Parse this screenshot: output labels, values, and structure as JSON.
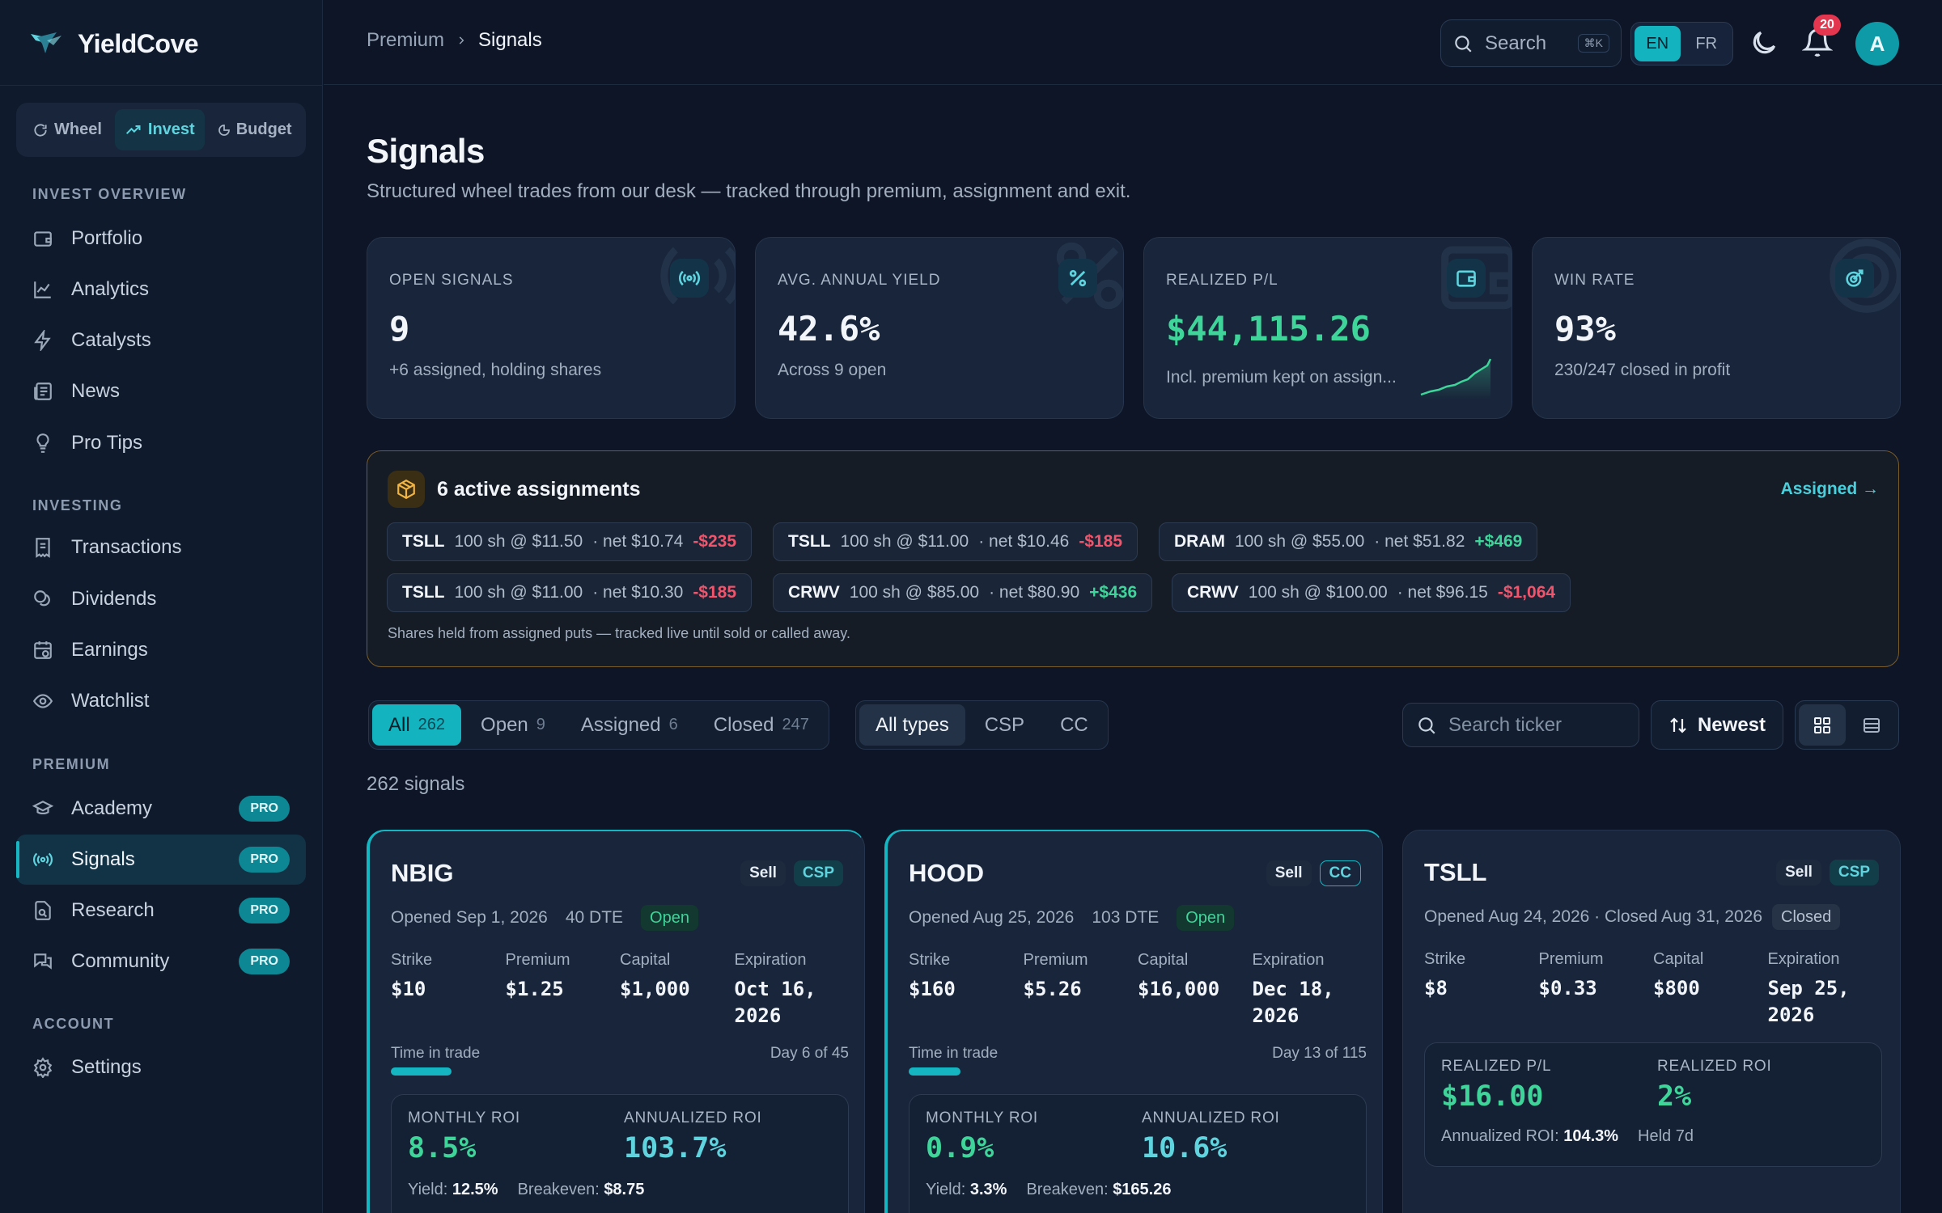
{
  "brand": {
    "name": "YieldCove"
  },
  "modes": [
    {
      "label": "Wheel",
      "active": false
    },
    {
      "label": "Invest",
      "active": true
    },
    {
      "label": "Budget",
      "active": false
    }
  ],
  "sidebar": {
    "sections": [
      {
        "title": "INVEST OVERVIEW",
        "items": [
          "Portfolio",
          "Analytics",
          "Catalysts",
          "News",
          "Pro Tips"
        ]
      },
      {
        "title": "INVESTING",
        "items": [
          "Transactions",
          "Dividends",
          "Earnings",
          "Watchlist"
        ]
      },
      {
        "title": "PREMIUM",
        "items": [
          "Academy",
          "Signals",
          "Research",
          "Community"
        ]
      },
      {
        "title": "ACCOUNT",
        "items": [
          "Settings"
        ]
      }
    ],
    "pro_badge": "PRO",
    "active_item": "Signals"
  },
  "header": {
    "breadcrumb": [
      "Premium",
      "Signals"
    ],
    "search_label": "Search",
    "search_kbd": "⌘K",
    "langs": [
      "EN",
      "FR"
    ],
    "active_lang": "EN",
    "notif_count": "20",
    "avatar_initial": "A"
  },
  "page": {
    "title": "Signals",
    "subtitle": "Structured wheel trades from our desk — tracked through premium, assignment and exit."
  },
  "stats": [
    {
      "label": "OPEN SIGNALS",
      "value": "9",
      "sub": "+6 assigned, holding shares",
      "icon": "broadcast-icon"
    },
    {
      "label": "AVG. ANNUAL YIELD",
      "value": "42.6%",
      "sub": "Across 9 open",
      "icon": "percent-icon"
    },
    {
      "label": "REALIZED P/L",
      "value": "$44,115.26",
      "sub": "Incl. premium kept on assign...",
      "icon": "wallet-icon"
    },
    {
      "label": "WIN RATE",
      "value": "93%",
      "sub": "230/247 closed in profit",
      "icon": "target-icon"
    }
  ],
  "assignments": {
    "title": "6 active assignments",
    "link": "Assigned →",
    "note": "Shares held from assigned puts — tracked live until sold or called away.",
    "chips": [
      {
        "ticker": "TSLL",
        "detail": "100 sh @ $11.50",
        "net": "· net $10.74",
        "pl": "-$235",
        "positive": false
      },
      {
        "ticker": "TSLL",
        "detail": "100 sh @ $11.00",
        "net": "· net $10.46",
        "pl": "-$185",
        "positive": false
      },
      {
        "ticker": "DRAM",
        "detail": "100 sh @ $55.00",
        "net": "· net $51.82",
        "pl": "+$469",
        "positive": true
      },
      {
        "ticker": "TSLL",
        "detail": "100 sh @ $11.00",
        "net": "· net $10.30",
        "pl": "-$185",
        "positive": false
      },
      {
        "ticker": "CRWV",
        "detail": "100 sh @ $85.00",
        "net": "· net $80.90",
        "pl": "+$436",
        "positive": true
      },
      {
        "ticker": "CRWV",
        "detail": "100 sh @ $100.00",
        "net": "· net $96.15",
        "pl": "-$1,064",
        "positive": false
      }
    ]
  },
  "filters": {
    "status_tabs": [
      {
        "label": "All",
        "count": "262",
        "active": true
      },
      {
        "label": "Open",
        "count": "9",
        "active": false
      },
      {
        "label": "Assigned",
        "count": "6",
        "active": false
      },
      {
        "label": "Closed",
        "count": "247",
        "active": false
      }
    ],
    "type_tabs": [
      {
        "label": "All types",
        "active": true
      },
      {
        "label": "CSP",
        "active": false
      },
      {
        "label": "CC",
        "active": false
      }
    ],
    "search_placeholder": "Search ticker",
    "sort_label": "Newest"
  },
  "signal_count": "262 signals",
  "labels": {
    "strike": "Strike",
    "premium": "Premium",
    "capital": "Capital",
    "expiration": "Expiration",
    "time_in_trade": "Time in trade",
    "monthly_roi": "MONTHLY ROI",
    "annualized_roi": "ANNUALIZED ROI",
    "yield": "Yield:",
    "breakeven": "Breakeven:",
    "realized_pl": "REALIZED P/L",
    "realized_roi": "REALIZED ROI",
    "annualized_roi_inline": "Annualized ROI:"
  },
  "cards": [
    {
      "ticker": "NBIG",
      "side": "Sell",
      "type": "CSP",
      "opened": "Opened Sep 1, 2026",
      "dte": "40 DTE",
      "status": "Open",
      "strike": "$10",
      "premium": "$1.25",
      "capital": "$1,000",
      "expiration": "Oct 16, 2026",
      "day": "Day 6 of 45",
      "progress": 0.133,
      "monthly_roi": "8.5%",
      "annualized_roi": "103.7%",
      "yield": "12.5%",
      "breakeven": "$8.75"
    },
    {
      "ticker": "HOOD",
      "side": "Sell",
      "type": "CC",
      "opened": "Opened Aug 25, 2026",
      "dte": "103 DTE",
      "status": "Open",
      "strike": "$160",
      "premium": "$5.26",
      "capital": "$16,000",
      "expiration": "Dec 18, 2026",
      "day": "Day 13 of 115",
      "progress": 0.113,
      "monthly_roi": "0.9%",
      "annualized_roi": "10.6%",
      "yield": "3.3%",
      "breakeven": "$165.26"
    },
    {
      "ticker": "TSLL",
      "side": "Sell",
      "type": "CSP",
      "opened": "Opened Aug 24, 2026 · Closed Aug 31, 2026",
      "status": "Closed",
      "strike": "$8",
      "premium": "$0.33",
      "capital": "$800",
      "expiration": "Sep 25, 2026",
      "realized_pl": "$16.00",
      "realized_roi": "2%",
      "annualized_roi": "104.3%",
      "held": "Held 7d"
    }
  ],
  "colors": {
    "accent": "#13b3c0",
    "positive": "#3fd59a",
    "negative": "#f0556c",
    "warning": "#f2b543"
  }
}
